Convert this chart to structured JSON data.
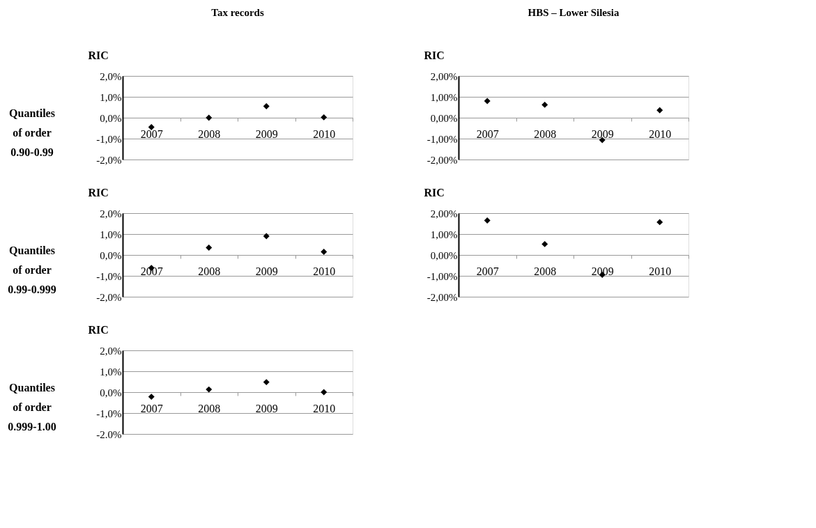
{
  "chart_data": [
    {
      "type": "scatter",
      "title": "Tax records",
      "ylabel": "RIC",
      "annotations": [
        "Quantiles of order 0.90-0.99"
      ],
      "categories": [
        "2007",
        "2008",
        "2009",
        "2010"
      ],
      "values": [
        -0.45,
        0.0,
        0.55,
        0.02
      ],
      "color": "#000000",
      "marker": "diamond",
      "ylim": [
        -2,
        2
      ],
      "yticks": [
        {
          "value": -2,
          "label": "-2,0%"
        },
        {
          "value": -1,
          "label": "-1,0%"
        },
        {
          "value": 0,
          "label": "0,0%"
        },
        {
          "value": 1,
          "label": "1,0%"
        },
        {
          "value": 2,
          "label": "2,0%"
        }
      ],
      "grid": "y"
    },
    {
      "type": "scatter",
      "title": "HBS – Lower Silesia",
      "ylabel": "RIC",
      "categories": [
        "2007",
        "2008",
        "2009",
        "2010"
      ],
      "values": [
        0.8,
        0.62,
        -1.07,
        0.36
      ],
      "color": "#000000",
      "marker": "diamond",
      "ylim": [
        -2,
        2
      ],
      "yticks": [
        {
          "value": -2,
          "label": "-2,00%"
        },
        {
          "value": -1,
          "label": "-1,00%"
        },
        {
          "value": 0,
          "label": "0,00%"
        },
        {
          "value": 1,
          "label": "1,00%"
        },
        {
          "value": 2,
          "label": "2,00%"
        }
      ],
      "grid": "y"
    },
    {
      "type": "scatter",
      "ylabel": "RIC",
      "annotations": [
        "Quantiles of order 0.99-0.999"
      ],
      "categories": [
        "2007",
        "2008",
        "2009",
        "2010"
      ],
      "values": [
        -0.62,
        0.35,
        0.9,
        0.15
      ],
      "color": "#000000",
      "marker": "diamond",
      "ylim": [
        -2,
        2
      ],
      "yticks": [
        {
          "value": -2,
          "label": "-2,0%"
        },
        {
          "value": -1,
          "label": "-1,0%"
        },
        {
          "value": 0,
          "label": "0,0%"
        },
        {
          "value": 1,
          "label": "1,0%"
        },
        {
          "value": 2,
          "label": "2,0%"
        }
      ],
      "grid": "y"
    },
    {
      "type": "scatter",
      "ylabel": "RIC",
      "categories": [
        "2007",
        "2008",
        "2009",
        "2010"
      ],
      "values": [
        1.65,
        0.52,
        -0.95,
        1.57
      ],
      "color": "#000000",
      "marker": "diamond",
      "ylim": [
        -2,
        2
      ],
      "yticks": [
        {
          "value": -2,
          "label": "-2,00%"
        },
        {
          "value": -1,
          "label": "-1,00%"
        },
        {
          "value": 0,
          "label": "0,00%"
        },
        {
          "value": 1,
          "label": "1,00%"
        },
        {
          "value": 2,
          "label": "2,00%"
        }
      ],
      "grid": "y"
    },
    {
      "type": "scatter",
      "ylabel": "RIC",
      "annotations": [
        "Quantiles of order 0.999-1.00"
      ],
      "categories": [
        "2007",
        "2008",
        "2009",
        "2010"
      ],
      "values": [
        -0.22,
        0.13,
        0.48,
        0.0
      ],
      "color": "#000000",
      "marker": "diamond",
      "ylim": [
        -2,
        2
      ],
      "yticks": [
        {
          "value": -2,
          "label": "-2.0%"
        },
        {
          "value": -1,
          "label": "-1,0%"
        },
        {
          "value": 0,
          "label": "0,0%"
        },
        {
          "value": 1,
          "label": "1,0%"
        },
        {
          "value": 2,
          "label": "2,0%"
        }
      ],
      "grid": "y"
    }
  ]
}
